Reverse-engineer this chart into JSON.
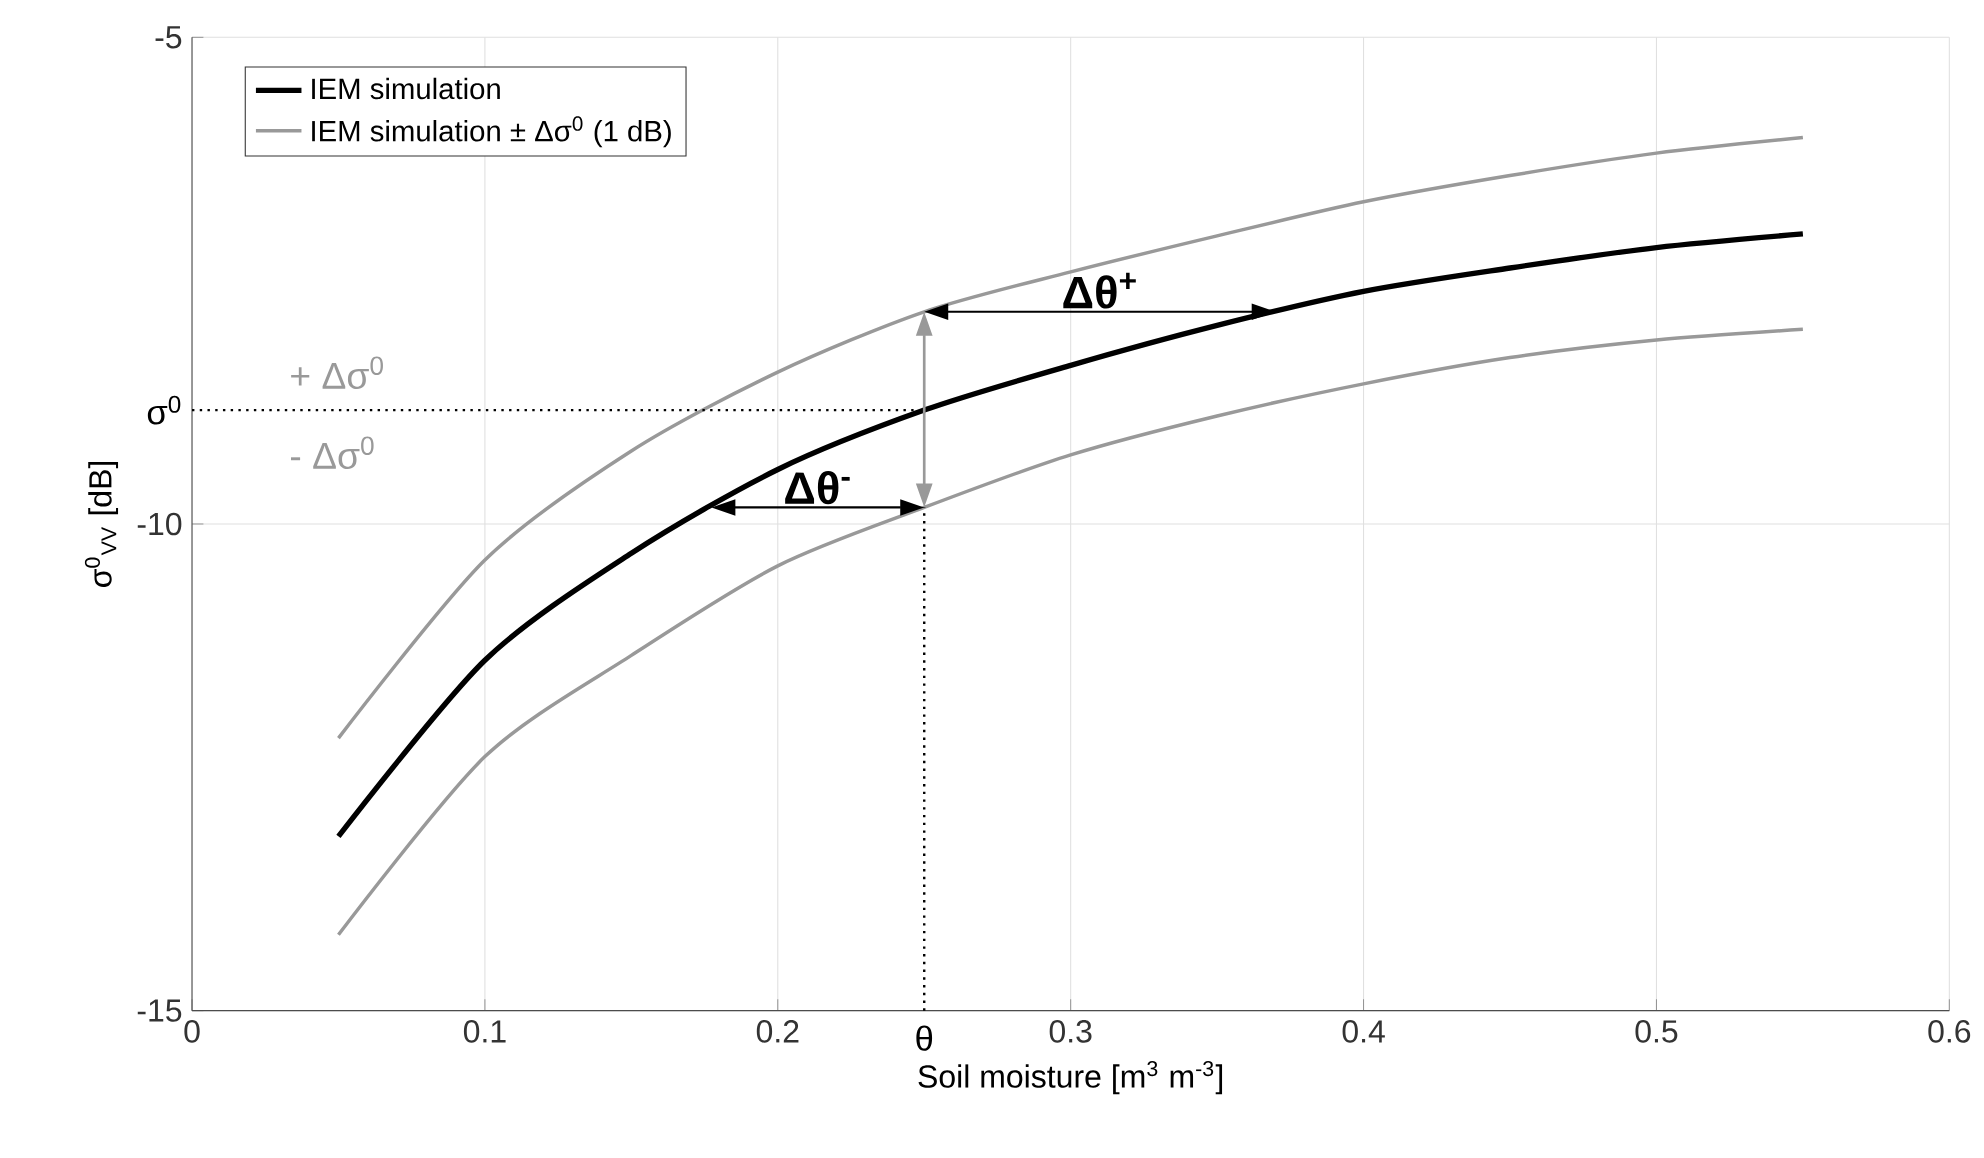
{
  "chart_data": {
    "type": "line",
    "xlabel": "Soil moisture [m$^{3}$ m$^{-3}$]",
    "ylabel": "σ$^{0}$$_{VV}$ [dB]",
    "x": [
      0.05,
      0.1,
      0.15,
      0.2,
      0.25,
      0.3,
      0.35,
      0.4,
      0.45,
      0.5,
      0.55
    ],
    "series": [
      {
        "name": "IEM simulation",
        "color": "#000000",
        "values": [
          -13.21,
          -11.4,
          -10.3,
          -9.44,
          -8.83,
          -8.37,
          -7.96,
          -7.61,
          -7.37,
          -7.16,
          -7.02
        ]
      },
      {
        "name": "IEM simulation  ± Δσ$^{0}$ (1 dB)",
        "color": "#999999",
        "values": [
          -12.2,
          -10.37,
          -9.25,
          -8.44,
          -7.82,
          -7.41,
          -7.04,
          -6.69,
          -6.42,
          -6.19,
          -6.03
        ]
      },
      {
        "color": "#999999",
        "values": [
          -14.22,
          -12.39,
          -11.35,
          -10.43,
          -9.83,
          -9.29,
          -8.89,
          -8.56,
          -8.29,
          -8.11,
          -8.0
        ]
      }
    ],
    "xlim": [
      0,
      0.6
    ],
    "ylim": [
      -15,
      -5
    ],
    "xticks": [
      {
        "value": 0,
        "label": "0"
      },
      {
        "value": 0.1,
        "label": "0.1"
      },
      {
        "value": 0.2,
        "label": "0.2"
      },
      {
        "value": 0.3,
        "label": "0.3"
      },
      {
        "value": 0.4,
        "label": "0.4"
      },
      {
        "value": 0.5,
        "label": "0.5"
      },
      {
        "value": 0.6,
        "label": "0.6"
      }
    ],
    "yticks": [
      {
        "value": -15,
        "label": "-15"
      },
      {
        "value": -10,
        "label": "-10"
      },
      {
        "value": -5,
        "label": "-5"
      }
    ],
    "grid": true,
    "legend": "top left",
    "marker": "none",
    "line_style": "solid",
    "ref_lines": [
      {
        "axis": "y",
        "value": -8.83,
        "label": "σ$^{0}$",
        "color": "#000000",
        "line_style": "dotted"
      },
      {
        "axis": "x",
        "value": 0.25,
        "label": "θ",
        "color": "#000000",
        "line_style": "dotted"
      }
    ],
    "annotations": [
      "+ Δσ$^{0}$",
      "- Δσ$^{0}$",
      "Δθ$^{+}$",
      "Δθ$^{-}$"
    ]
  }
}
